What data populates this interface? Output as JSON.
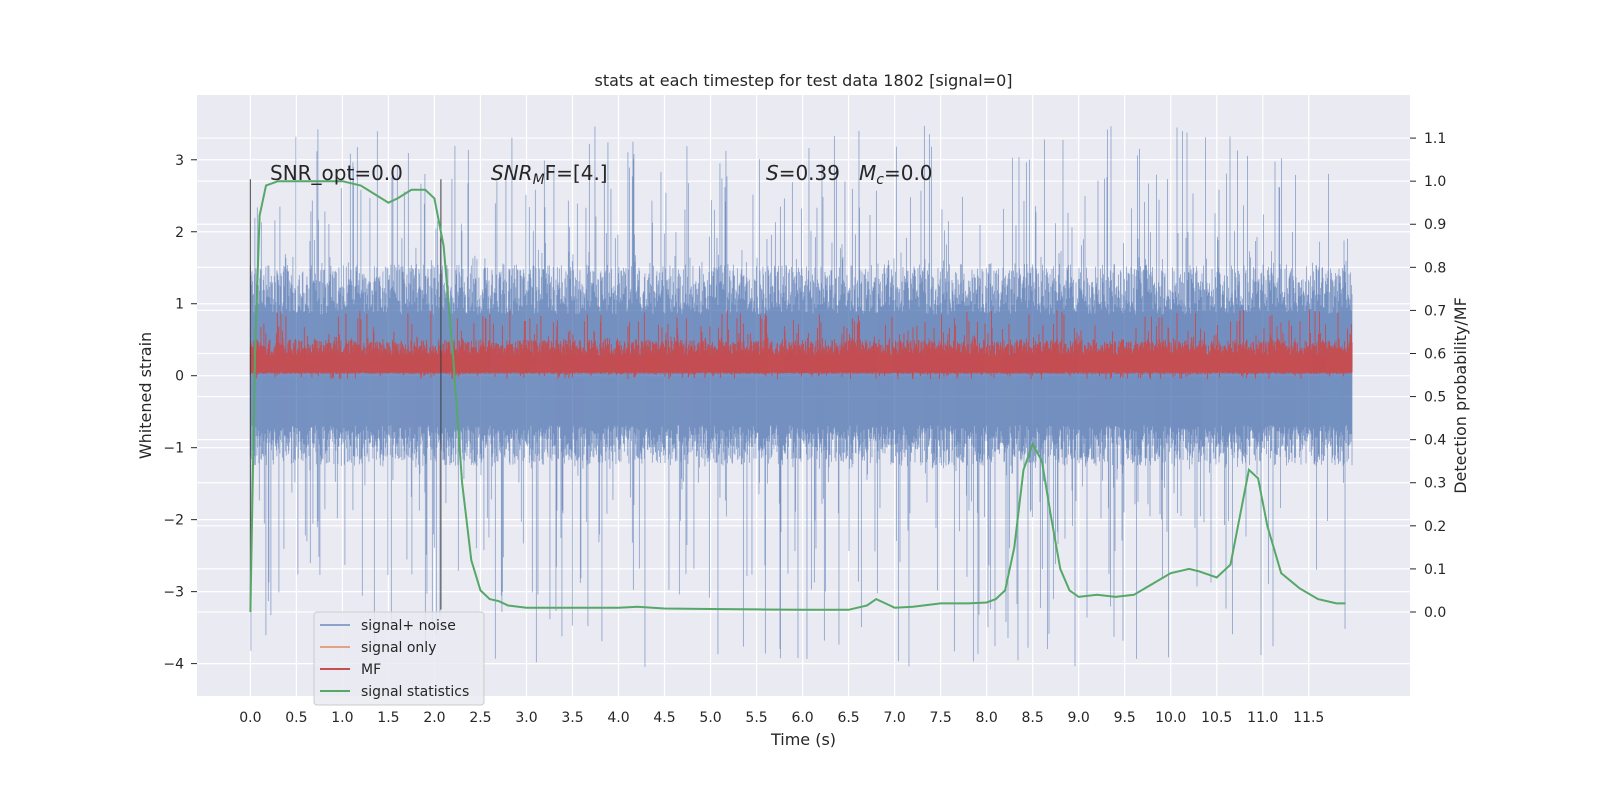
{
  "chart_data": {
    "type": "line",
    "title": "stats at each timestep for test data 1802 [signal=0]",
    "xlabel": "Time (s)",
    "ylabel": "Whitened strain",
    "ylabel_right": "Detection probability/MF",
    "xlim": [
      -0.58,
      12.6
    ],
    "ylim": [
      -4.45,
      3.9
    ],
    "ylim_right": [
      -0.195,
      1.2
    ],
    "x_ticks": [
      "0.0",
      "0.5",
      "1.0",
      "1.5",
      "2.0",
      "2.5",
      "3.0",
      "3.5",
      "4.0",
      "4.5",
      "5.0",
      "5.5",
      "6.0",
      "6.5",
      "7.0",
      "7.5",
      "8.0",
      "8.5",
      "9.0",
      "9.5",
      "10.0",
      "10.5",
      "11.0",
      "11.5"
    ],
    "y_ticks": [
      "3",
      "2",
      "1",
      "0",
      "−1",
      "−2",
      "−3",
      "−4"
    ],
    "y_ticks_right": [
      "1.1",
      "1.0",
      "0.9",
      "0.8",
      "0.7",
      "0.6",
      "0.5",
      "0.4",
      "0.3",
      "0.2",
      "0.1",
      "0.0"
    ],
    "grid": true,
    "legend_position": "lower-left",
    "annotations": {
      "snr_opt": "SNR_opt=0.0",
      "snr_mf_name": "SNR",
      "snr_mf_sub": "M",
      "snr_mf_rest": "F=[4.]",
      "s_name": "S",
      "s_value": "=0.39",
      "mc_name": "M",
      "mc_sub": "c",
      "mc_value": "=0.0"
    },
    "vlines": [
      {
        "x": 0.0,
        "ymin": -3.25,
        "ymax": 2.73
      },
      {
        "x": 2.07,
        "ymin": -3.25,
        "ymax": 2.73
      }
    ],
    "series": [
      {
        "name": "signal+ noise",
        "color": "#4c72b0",
        "axis": "left",
        "x_range": [
          0.0,
          11.97
        ],
        "envelope": {
          "base_upper": 1.55,
          "base_lower": -1.25,
          "peak_max": 3.5,
          "peak_min": -4.05
        }
      },
      {
        "name": "signal only",
        "color": "#dd8452",
        "axis": "left",
        "values": []
      },
      {
        "name": "MF",
        "color": "#c44e52",
        "axis": "left",
        "x_range": [
          0.0,
          11.97
        ],
        "envelope": {
          "base_upper": 0.5,
          "base_lower": 0.05,
          "peak_max": 0.92,
          "peak_min": -0.05
        }
      },
      {
        "name": "signal statistics",
        "color": "#55a868",
        "axis": "right",
        "x": [
          0.0,
          0.05,
          0.1,
          0.17,
          0.3,
          0.5,
          0.8,
          1.0,
          1.2,
          1.35,
          1.5,
          1.6,
          1.75,
          1.9,
          2.0,
          2.1,
          2.2,
          2.3,
          2.4,
          2.5,
          2.6,
          2.7,
          2.8,
          3.0,
          3.2,
          3.5,
          4.0,
          4.2,
          4.5,
          5.0,
          5.5,
          6.0,
          6.5,
          6.7,
          6.8,
          6.9,
          7.0,
          7.2,
          7.5,
          7.8,
          8.0,
          8.1,
          8.2,
          8.3,
          8.4,
          8.5,
          8.6,
          8.7,
          8.8,
          8.9,
          9.0,
          9.2,
          9.4,
          9.6,
          9.8,
          10.0,
          10.2,
          10.3,
          10.5,
          10.65,
          10.75,
          10.85,
          10.95,
          11.05,
          11.2,
          11.4,
          11.6,
          11.8,
          11.9
        ],
        "values": [
          0.0,
          0.6,
          0.92,
          0.99,
          1.0,
          1.0,
          1.0,
          1.0,
          0.99,
          0.97,
          0.95,
          0.96,
          0.98,
          0.98,
          0.96,
          0.85,
          0.6,
          0.3,
          0.12,
          0.05,
          0.03,
          0.025,
          0.015,
          0.01,
          0.01,
          0.01,
          0.01,
          0.012,
          0.008,
          0.007,
          0.006,
          0.005,
          0.005,
          0.015,
          0.03,
          0.02,
          0.01,
          0.012,
          0.02,
          0.02,
          0.022,
          0.03,
          0.05,
          0.15,
          0.33,
          0.39,
          0.35,
          0.22,
          0.1,
          0.05,
          0.035,
          0.04,
          0.035,
          0.04,
          0.065,
          0.09,
          0.1,
          0.095,
          0.08,
          0.11,
          0.22,
          0.33,
          0.31,
          0.2,
          0.09,
          0.055,
          0.03,
          0.02,
          0.02
        ]
      }
    ]
  }
}
